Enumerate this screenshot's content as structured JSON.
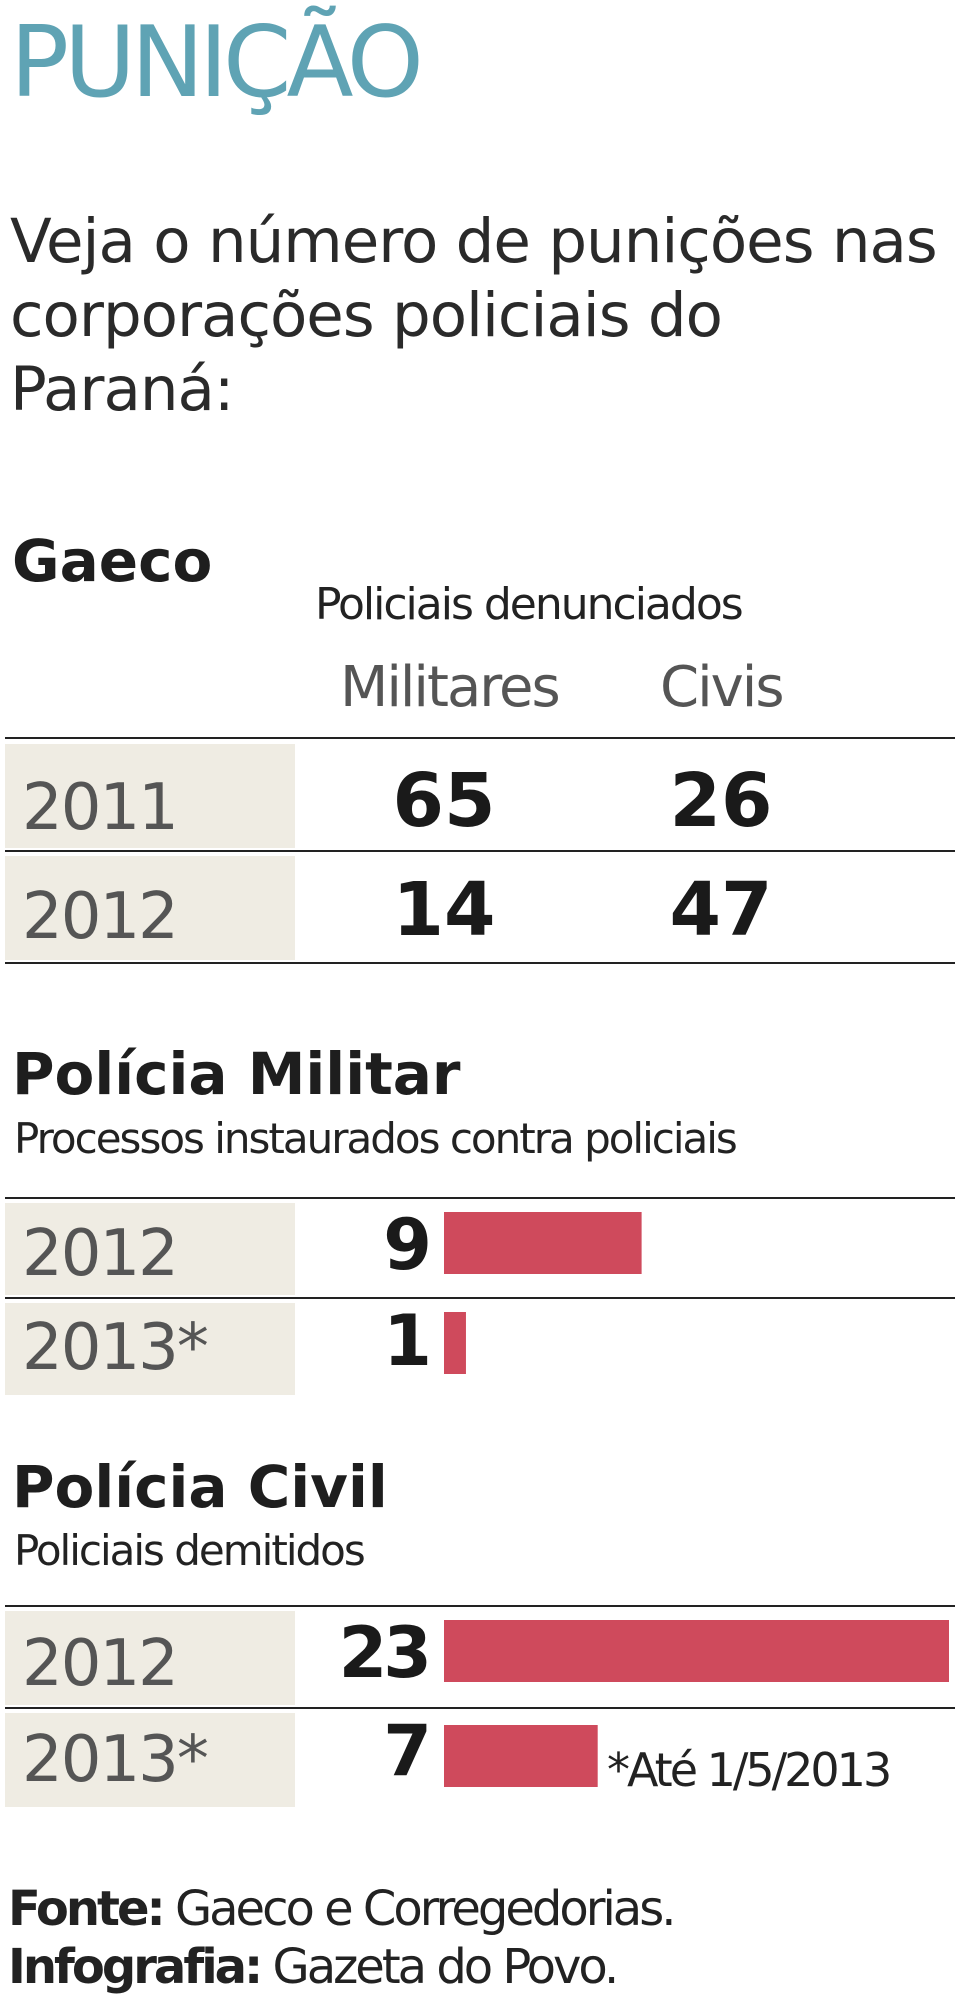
{
  "kicker": "PUNIÇÃO",
  "headline": "Veja o número de punições nas corporações policiais do Paraná:",
  "accent_color": "#cf4a5c",
  "kicker_color": "#5fa3b4",
  "gaeco": {
    "title": "Gaeco",
    "subtitle": "Policiais denunciados",
    "col_militares": "Militares",
    "col_civis": "Civis",
    "rows": [
      {
        "year": "2011",
        "militares": "65",
        "civis": "26"
      },
      {
        "year": "2012",
        "militares": "14",
        "civis": "47"
      }
    ]
  },
  "pm": {
    "title": "Polícia Militar",
    "subtitle": "Processos instaurados contra policiais",
    "rows": [
      {
        "year": "2012",
        "value_label": "9"
      },
      {
        "year": "2013*",
        "value_label": "1"
      }
    ]
  },
  "pc": {
    "title": "Polícia Civil",
    "subtitle": "Policiais demitidos",
    "rows": [
      {
        "year": "2012",
        "value_label": "23"
      },
      {
        "year": "2013*",
        "value_label": "7"
      }
    ],
    "note": "*Até 1/5/2013"
  },
  "credits": {
    "source_label": "Fonte:",
    "source_text": " Gaeco e Corregedorias.",
    "graphics_label": "Infografia:",
    "graphics_text": " Gazeta do Povo."
  },
  "chart_data": [
    {
      "type": "table",
      "title": "Gaeco",
      "subtitle": "Policiais denunciados",
      "columns": [
        "Militares",
        "Civis"
      ],
      "rows": [
        {
          "category": "2011",
          "values": [
            65,
            26
          ]
        },
        {
          "category": "2012",
          "values": [
            14,
            47
          ]
        }
      ]
    },
    {
      "type": "bar",
      "orientation": "horizontal",
      "title": "Polícia Militar",
      "subtitle": "Processos instaurados contra policiais",
      "categories": [
        "2012",
        "2013*"
      ],
      "values": [
        9,
        1
      ]
    },
    {
      "type": "bar",
      "orientation": "horizontal",
      "title": "Polícia Civil",
      "subtitle": "Policiais demitidos",
      "categories": [
        "2012",
        "2013*"
      ],
      "values": [
        23,
        7
      ],
      "annotations": [
        "*Até 1/5/2013"
      ]
    }
  ]
}
